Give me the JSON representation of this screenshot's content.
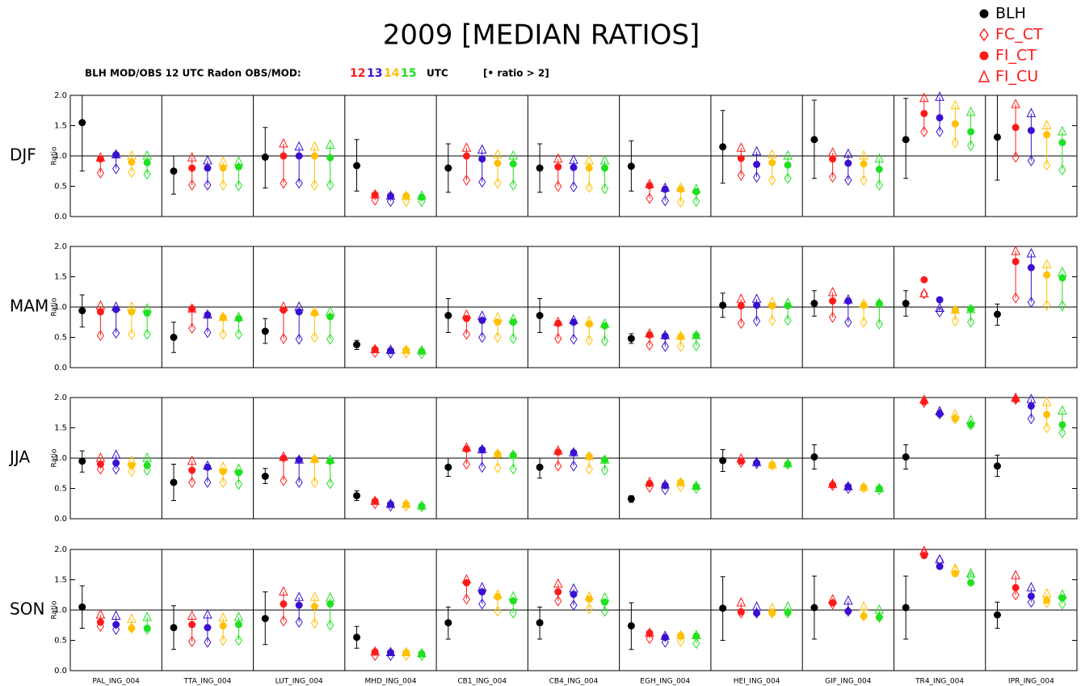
{
  "chart_data": {
    "type": "ratio-dots",
    "title": "2009 [MEDIAN RATIOS]",
    "subtitle": "BLH MOD/OBS 12 UTC  Radon OBS/MOD:",
    "subtitle_unit": "UTC",
    "note": "[• ratio > 2]",
    "y_label": "Ratio",
    "ylim": [
      0,
      2
    ],
    "yticks": [
      {
        "value": 0,
        "label": "0.0"
      },
      {
        "value": 0.5,
        "label": "0.5"
      },
      {
        "value": 1,
        "label": "1.0"
      },
      {
        "value": 1.5,
        "label": "1.5"
      },
      {
        "value": 2,
        "label": "2.0"
      }
    ],
    "hline": 1,
    "legend": [
      {
        "name": "BLH",
        "color": "#000000"
      },
      {
        "name": "FC_CT",
        "color": "#ff1a1a"
      },
      {
        "name": "FI_CT",
        "color": "#ff1a1a"
      },
      {
        "name": "FI_CU",
        "color": "#ff1a1a"
      }
    ],
    "hours": [
      {
        "name": "12",
        "color": "#ff1a1a"
      },
      {
        "name": "13",
        "color": "#3a10d0"
      },
      {
        "name": "14",
        "color": "#ffc000"
      },
      {
        "name": "15",
        "color": "#20e020"
      }
    ],
    "stations": [
      "PAL_ING_004",
      "TTA_ING_004",
      "LUT_ING_004",
      "MHD_ING_004",
      "CB1_ING_004",
      "CB4_ING_004",
      "EGH_ING_004",
      "HEI_ING_004",
      "GIF_ING_004",
      "TR4_ING_004",
      "IPR_ING_004"
    ],
    "panels": [
      {
        "label": "DJF",
        "blh": {
          "values": [
            1.55,
            0.75,
            0.98,
            0.84,
            0.8,
            0.8,
            0.83,
            1.15,
            1.27,
            1.27,
            1.31
          ],
          "low": [
            0.75,
            0.37,
            0.47,
            0.42,
            0.4,
            0.4,
            0.42,
            0.55,
            0.63,
            0.63,
            0.6
          ],
          "high": [
            2.0,
            1.0,
            1.47,
            1.27,
            1.2,
            1.2,
            1.25,
            1.75,
            1.92,
            1.95,
            2.0
          ]
        },
        "hours": [
          {
            "fi_ct": [
              0.95,
              0.8,
              1.0,
              0.36,
              1.0,
              0.82,
              0.51,
              0.96,
              0.95,
              1.7,
              1.47
            ],
            "fc_ct": [
              0.72,
              0.52,
              0.55,
              0.27,
              0.6,
              0.5,
              0.3,
              0.68,
              0.65,
              1.4,
              0.98
            ],
            "fi_cu": [
              0.97,
              0.97,
              1.2,
              0.36,
              1.13,
              0.95,
              0.53,
              1.13,
              1.05,
              1.95,
              1.85
            ]
          },
          {
            "fi_ct": [
              1.02,
              0.8,
              1.0,
              0.34,
              0.95,
              0.81,
              0.45,
              0.86,
              0.88,
              1.63,
              1.42
            ],
            "fc_ct": [
              0.79,
              0.52,
              0.55,
              0.25,
              0.57,
              0.49,
              0.26,
              0.65,
              0.6,
              1.4,
              0.92
            ],
            "fi_cu": [
              1.02,
              0.92,
              1.15,
              0.34,
              1.1,
              0.93,
              0.47,
              1.07,
              1.03,
              1.97,
              1.7
            ]
          },
          {
            "fi_ct": [
              0.9,
              0.8,
              1.0,
              0.34,
              0.88,
              0.8,
              0.45,
              0.89,
              0.87,
              1.53,
              1.35
            ],
            "fc_ct": [
              0.73,
              0.52,
              0.52,
              0.25,
              0.55,
              0.48,
              0.24,
              0.6,
              0.6,
              1.22,
              0.85
            ],
            "fi_cu": [
              1.0,
              0.9,
              1.15,
              0.34,
              1.02,
              0.92,
              0.47,
              1.02,
              1.0,
              1.83,
              1.5
            ]
          },
          {
            "fi_ct": [
              0.89,
              0.82,
              0.97,
              0.32,
              0.87,
              0.8,
              0.41,
              0.85,
              0.78,
              1.4,
              1.22
            ],
            "fc_ct": [
              0.7,
              0.51,
              0.52,
              0.25,
              0.52,
              0.46,
              0.25,
              0.63,
              0.52,
              1.17,
              0.77
            ],
            "fi_cu": [
              1.0,
              0.9,
              1.18,
              0.34,
              1.0,
              0.92,
              0.45,
              1.0,
              0.95,
              1.72,
              1.4
            ]
          }
        ]
      },
      {
        "label": "MAM",
        "blh": {
          "values": [
            0.94,
            0.5,
            0.6,
            0.38,
            0.86,
            0.86,
            0.48,
            1.03,
            1.06,
            1.06,
            0.88
          ],
          "low": [
            0.67,
            0.25,
            0.4,
            0.3,
            0.58,
            0.58,
            0.4,
            0.83,
            0.85,
            0.85,
            0.7
          ],
          "high": [
            1.2,
            0.75,
            0.81,
            0.45,
            1.14,
            1.14,
            0.56,
            1.23,
            1.27,
            1.27,
            1.05
          ]
        },
        "hours": [
          {
            "fi_ct": [
              0.92,
              0.97,
              0.95,
              0.3,
              0.81,
              0.73,
              0.54,
              1.02,
              1.1,
              1.45,
              1.75
            ],
            "fc_ct": [
              0.53,
              0.65,
              0.48,
              0.25,
              0.55,
              0.48,
              0.37,
              0.73,
              0.83,
              1.22,
              1.15
            ],
            "fi_cu": [
              1.02,
              0.97,
              1.0,
              0.3,
              0.87,
              0.75,
              0.56,
              1.13,
              1.24,
              1.22,
              1.92
            ]
          },
          {
            "fi_ct": [
              0.96,
              0.87,
              0.92,
              0.28,
              0.78,
              0.75,
              0.52,
              1.03,
              1.1,
              1.12,
              1.65
            ],
            "fc_ct": [
              0.57,
              0.58,
              0.47,
              0.24,
              0.5,
              0.47,
              0.35,
              0.77,
              0.75,
              0.92,
              1.08
            ],
            "fi_cu": [
              1.0,
              0.87,
              1.0,
              0.29,
              0.85,
              0.78,
              0.53,
              1.13,
              1.12,
              0.98,
              1.88
            ]
          },
          {
            "fi_ct": [
              0.92,
              0.83,
              0.9,
              0.29,
              0.75,
              0.72,
              0.51,
              1.02,
              1.03,
              0.95,
              1.53
            ],
            "fc_ct": [
              0.55,
              0.55,
              0.5,
              0.24,
              0.5,
              0.45,
              0.35,
              0.78,
              0.75,
              0.77,
              1.03
            ],
            "fi_cu": [
              1.0,
              0.83,
              0.92,
              0.29,
              0.82,
              0.76,
              0.52,
              1.08,
              1.05,
              0.95,
              1.7
            ]
          },
          {
            "fi_ct": [
              0.9,
              0.81,
              0.84,
              0.27,
              0.75,
              0.69,
              0.53,
              1.02,
              1.06,
              0.97,
              1.48
            ],
            "fc_ct": [
              0.55,
              0.55,
              0.47,
              0.23,
              0.48,
              0.44,
              0.36,
              0.78,
              0.72,
              0.75,
              1.02
            ],
            "fi_cu": [
              0.97,
              0.83,
              0.92,
              0.28,
              0.8,
              0.72,
              0.53,
              1.06,
              1.06,
              0.96,
              1.57
            ]
          }
        ]
      },
      {
        "label": "JJA",
        "blh": {
          "values": [
            0.95,
            0.6,
            0.7,
            0.38,
            0.85,
            0.85,
            0.33,
            0.96,
            1.02,
            1.02,
            0.87
          ],
          "low": [
            0.77,
            0.3,
            0.58,
            0.3,
            0.7,
            0.67,
            0.27,
            0.78,
            0.82,
            0.82,
            0.7
          ],
          "high": [
            1.12,
            0.9,
            0.83,
            0.46,
            1.0,
            1.0,
            0.38,
            1.14,
            1.22,
            1.22,
            1.05
          ]
        },
        "hours": [
          {
            "fi_ct": [
              0.9,
              0.8,
              1.0,
              0.29,
              1.15,
              1.1,
              0.58,
              0.95,
              0.56,
              1.93,
              1.97
            ],
            "fc_ct": [
              0.82,
              0.6,
              0.63,
              0.25,
              0.9,
              0.87,
              0.52,
              0.93,
              0.55,
              1.92,
              1.97
            ],
            "fi_cu": [
              1.0,
              0.95,
              1.02,
              0.29,
              1.17,
              1.12,
              0.6,
              0.99,
              0.57,
              1.96,
              1.99
            ]
          },
          {
            "fi_ct": [
              0.92,
              0.85,
              0.97,
              0.24,
              1.14,
              1.09,
              0.55,
              0.92,
              0.53,
              1.73,
              1.86
            ],
            "fc_ct": [
              0.82,
              0.6,
              0.6,
              0.21,
              0.85,
              0.87,
              0.48,
              0.91,
              0.5,
              1.73,
              1.65
            ],
            "fi_cu": [
              1.05,
              0.87,
              0.97,
              0.24,
              1.14,
              1.09,
              0.56,
              0.93,
              0.53,
              1.77,
              1.97
            ]
          },
          {
            "fi_ct": [
              0.88,
              0.78,
              0.98,
              0.24,
              1.07,
              1.03,
              0.6,
              0.89,
              0.52,
              1.65,
              1.72
            ],
            "fc_ct": [
              0.78,
              0.6,
              0.6,
              0.21,
              0.84,
              0.82,
              0.53,
              0.88,
              0.51,
              1.65,
              1.5
            ],
            "fi_cu": [
              0.95,
              0.85,
              0.98,
              0.24,
              1.07,
              1.03,
              0.6,
              0.89,
              0.52,
              1.72,
              1.92
            ]
          },
          {
            "fi_ct": [
              0.88,
              0.76,
              0.95,
              0.21,
              1.05,
              0.97,
              0.53,
              0.9,
              0.5,
              1.55,
              1.55
            ],
            "fc_ct": [
              0.8,
              0.57,
              0.58,
              0.2,
              0.82,
              0.8,
              0.5,
              0.9,
              0.48,
              1.55,
              1.42
            ],
            "fi_cu": [
              1.0,
              0.82,
              0.97,
              0.21,
              1.05,
              0.97,
              0.54,
              0.91,
              0.5,
              1.62,
              1.78
            ]
          }
        ]
      },
      {
        "label": "SON",
        "blh": {
          "values": [
            1.05,
            0.71,
            0.86,
            0.55,
            0.79,
            0.79,
            0.74,
            1.03,
            1.04,
            1.04,
            0.92
          ],
          "low": [
            0.7,
            0.35,
            0.43,
            0.37,
            0.52,
            0.52,
            0.35,
            0.5,
            0.52,
            0.52,
            0.7
          ],
          "high": [
            1.4,
            1.07,
            1.3,
            0.73,
            1.05,
            1.05,
            1.12,
            1.55,
            1.56,
            1.56,
            1.13
          ]
        },
        "hours": [
          {
            "fi_ct": [
              0.8,
              0.76,
              1.1,
              0.31,
              1.45,
              1.3,
              0.62,
              0.97,
              1.12,
              1.9,
              1.37
            ],
            "fc_ct": [
              0.73,
              0.48,
              0.82,
              0.25,
              1.18,
              1.15,
              0.53,
              0.95,
              1.1,
              1.93,
              1.25
            ],
            "fi_cu": [
              0.92,
              0.9,
              1.3,
              0.31,
              1.5,
              1.43,
              0.62,
              1.12,
              1.17,
              1.97,
              1.57
            ]
          },
          {
            "fi_ct": [
              0.76,
              0.71,
              1.08,
              0.3,
              1.3,
              1.26,
              0.55,
              0.95,
              0.98,
              1.72,
              1.23
            ],
            "fc_ct": [
              0.68,
              0.47,
              0.8,
              0.25,
              1.1,
              1.08,
              0.47,
              0.95,
              0.98,
              1.82,
              1.13
            ],
            "fi_cu": [
              0.9,
              0.92,
              1.21,
              0.3,
              1.37,
              1.35,
              0.57,
              1.05,
              1.15,
              1.83,
              1.37
            ]
          },
          {
            "fi_ct": [
              0.7,
              0.74,
              1.06,
              0.3,
              1.22,
              1.18,
              0.58,
              0.95,
              0.9,
              1.6,
              1.16
            ],
            "fc_ct": [
              0.7,
              0.5,
              0.78,
              0.25,
              0.98,
              1.02,
              0.48,
              0.95,
              0.9,
              1.65,
              1.12
            ],
            "fi_cu": [
              0.85,
              0.87,
              1.21,
              0.3,
              1.25,
              1.22,
              0.58,
              1.03,
              1.05,
              1.68,
              1.27
            ]
          },
          {
            "fi_ct": [
              0.7,
              0.76,
              1.1,
              0.28,
              1.15,
              1.13,
              0.57,
              0.96,
              0.88,
              1.45,
              1.2
            ],
            "fc_ct": [
              0.68,
              0.5,
              0.75,
              0.25,
              0.95,
              0.98,
              0.45,
              0.95,
              0.88,
              1.55,
              1.1
            ],
            "fi_cu": [
              0.88,
              0.88,
              1.2,
              0.28,
              1.22,
              1.2,
              0.58,
              1.05,
              1.0,
              1.6,
              1.25
            ]
          }
        ]
      }
    ]
  }
}
